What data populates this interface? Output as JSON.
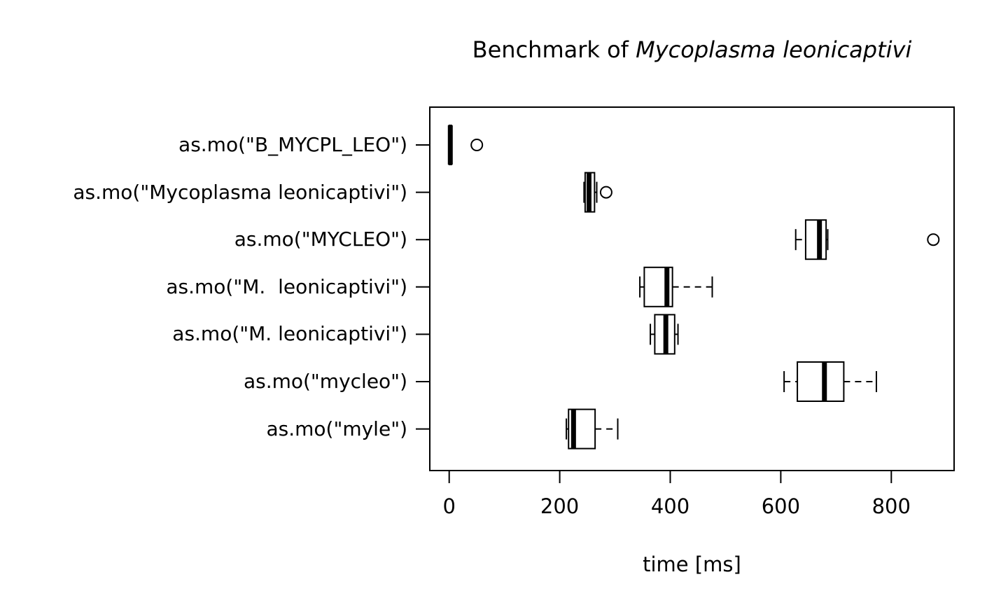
{
  "chart_data": {
    "type": "boxplot-horizontal",
    "title": "Benchmark of Mycoplasma leonicaptivi",
    "title_prefix": "Benchmark of ",
    "title_italic": "Mycoplasma leonicaptivi",
    "xlabel": "time [ms]",
    "x_ticks": [
      0,
      200,
      400,
      600,
      800
    ],
    "xlim": [
      -35,
      911
    ],
    "grid": false,
    "colors": {
      "background": "#ffffff",
      "line_color": "#000000",
      "box_fill": "#ffffff"
    },
    "categories": [
      "as.mo(\"B_MYCPL_LEO\")",
      "as.mo(\"Mycoplasma leonicaptivi\")",
      "as.mo(\"MYCLEO\")",
      "as.mo(\"M.  leonicaptivi\")",
      "as.mo(\"M. leonicaptivi\")",
      "as.mo(\"mycleo\")",
      "as.mo(\"myle\")"
    ],
    "series": [
      {
        "label": "as.mo(\"B_MYCPL_LEO\")",
        "whisker_low": 0,
        "q1": 0,
        "median": 2,
        "q3": 4,
        "whisker_high": 4,
        "outliers": [
          50
        ]
      },
      {
        "label": "as.mo(\"Mycoplasma leonicaptivi\")",
        "whisker_low": 244,
        "q1": 246,
        "median": 253,
        "q3": 263,
        "whisker_high": 267,
        "outliers": [
          284
        ]
      },
      {
        "label": "as.mo(\"MYCLEO\")",
        "whisker_low": 627,
        "q1": 645,
        "median": 670,
        "q3": 682,
        "whisker_high": 685,
        "outliers": [
          876
        ]
      },
      {
        "label": "as.mo(\"M.  leonicaptivi\")",
        "whisker_low": 345,
        "q1": 353,
        "median": 394,
        "q3": 404,
        "whisker_high": 476,
        "outliers": []
      },
      {
        "label": "as.mo(\"M. leonicaptivi\")",
        "whisker_low": 364,
        "q1": 372,
        "median": 392,
        "q3": 408,
        "whisker_high": 414,
        "outliers": []
      },
      {
        "label": "as.mo(\"mycleo\")",
        "whisker_low": 606,
        "q1": 630,
        "median": 679,
        "q3": 714,
        "whisker_high": 773,
        "outliers": []
      },
      {
        "label": "as.mo(\"myle\")",
        "whisker_low": 212,
        "q1": 216,
        "median": 225,
        "q3": 264,
        "whisker_high": 305,
        "outliers": []
      }
    ]
  }
}
